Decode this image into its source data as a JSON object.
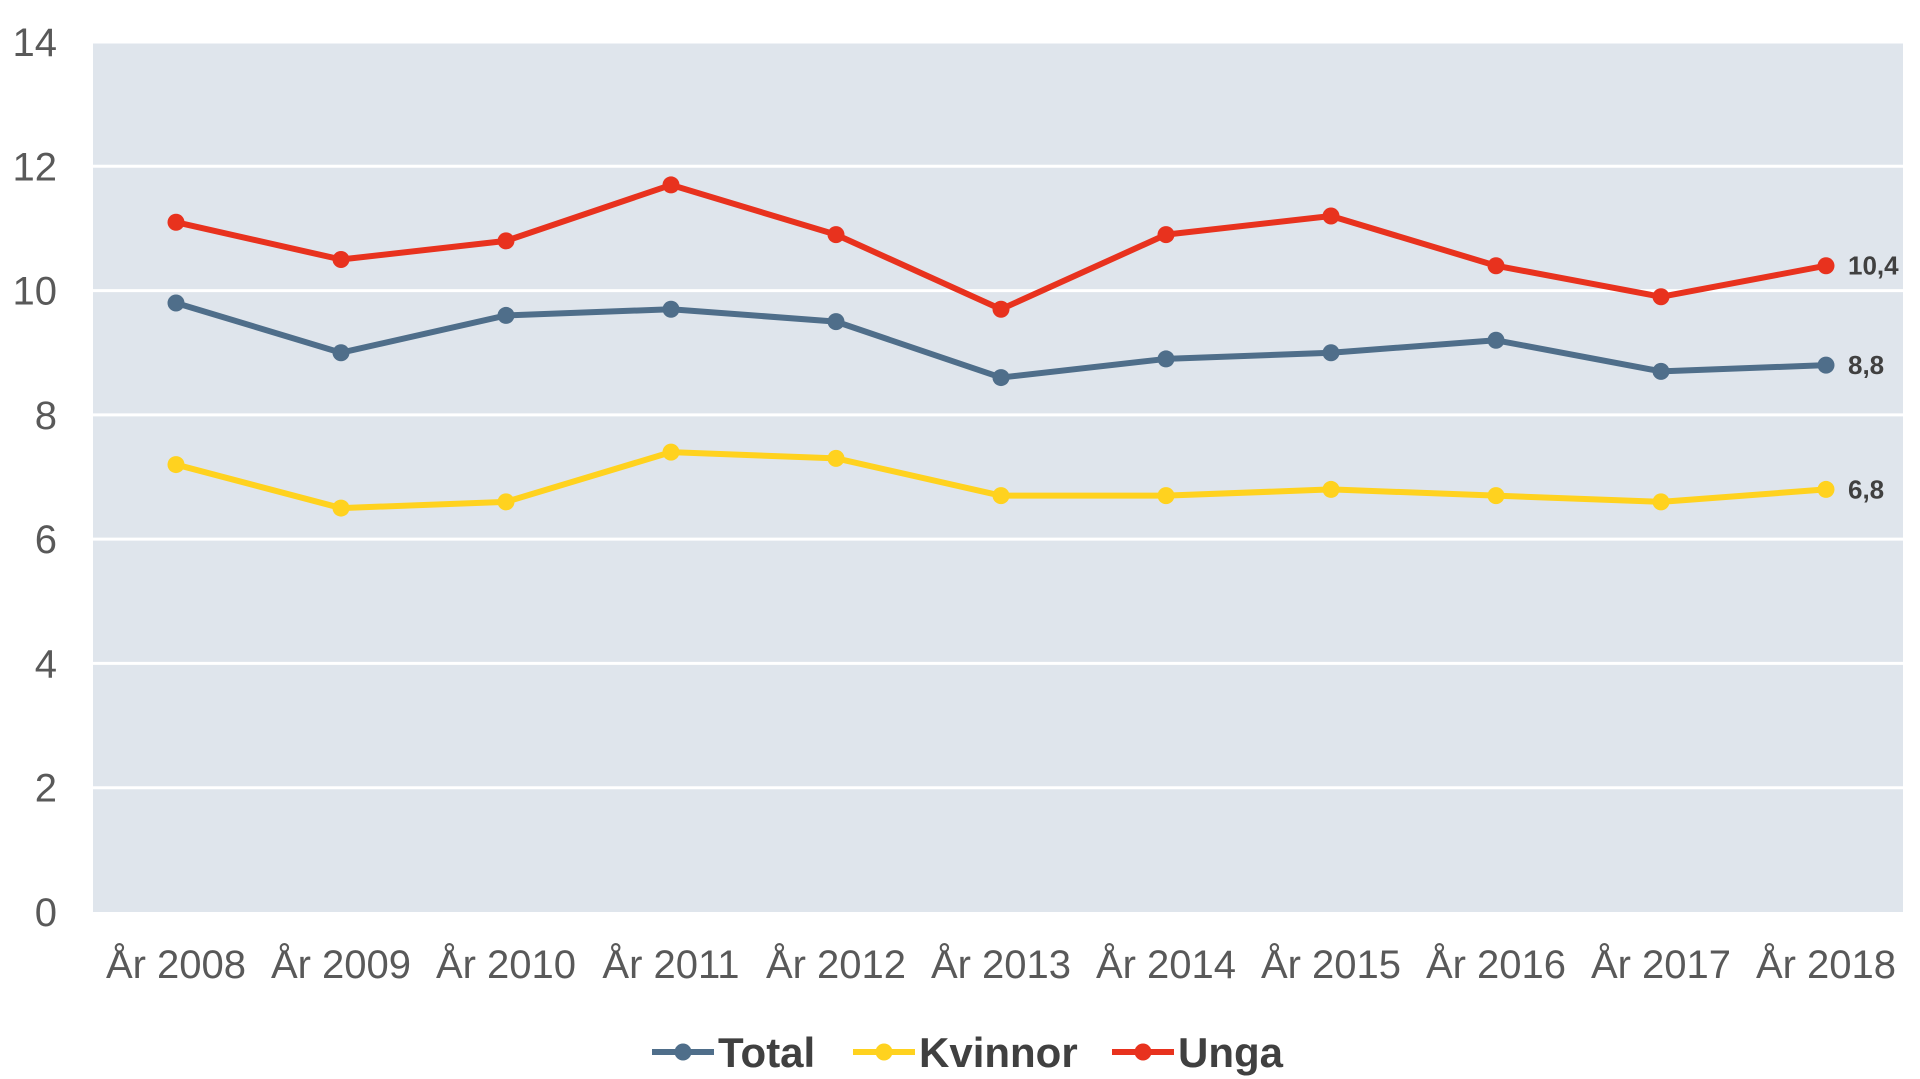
{
  "chart_data": {
    "type": "line",
    "title": "",
    "xlabel": "",
    "ylabel": "",
    "categories": [
      "År 2008",
      "År 2009",
      "År 2010",
      "År 2011",
      "År 2012",
      "År 2013",
      "År 2014",
      "År 2015",
      "År 2016",
      "År 2017",
      "År 2018"
    ],
    "ylim": [
      0,
      14
    ],
    "yticks": [
      "0",
      "2",
      "4",
      "6",
      "8",
      "10",
      "12",
      "14"
    ],
    "grid": true,
    "legend_position": "bottom",
    "series": [
      {
        "name": "Total",
        "color": "#4f6e8a",
        "values": [
          9.8,
          9.0,
          9.6,
          9.7,
          9.5,
          8.6,
          8.9,
          9.0,
          9.2,
          8.7,
          8.8
        ],
        "end_label": "8,8"
      },
      {
        "name": "Kvinnor",
        "color": "#ffd21f",
        "values": [
          7.2,
          6.5,
          6.6,
          7.4,
          7.3,
          6.7,
          6.7,
          6.8,
          6.7,
          6.6,
          6.8
        ],
        "end_label": "6,8"
      },
      {
        "name": "Unga",
        "color": "#e8321e",
        "values": [
          11.1,
          10.5,
          10.8,
          11.7,
          10.9,
          9.7,
          10.9,
          11.2,
          10.4,
          9.9,
          10.4
        ],
        "end_label": "10,4"
      }
    ]
  }
}
